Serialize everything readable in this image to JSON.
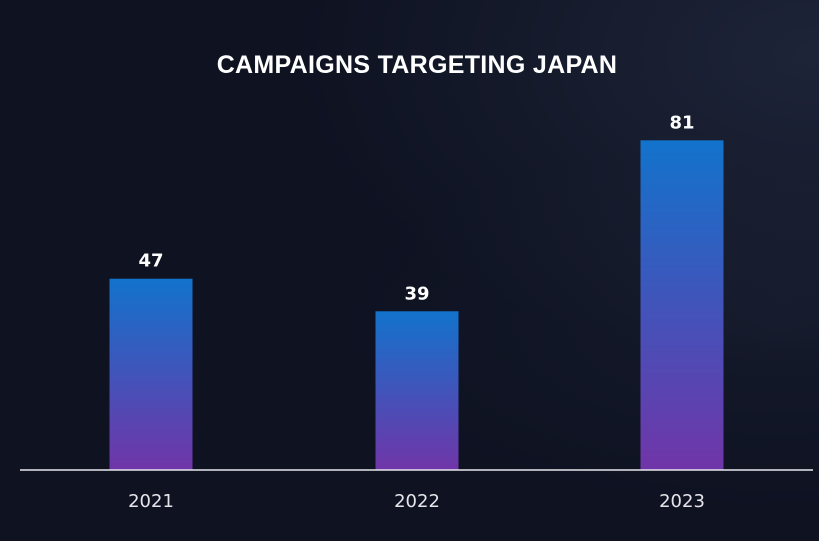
{
  "chart_data": {
    "type": "bar",
    "title": "CAMPAIGNS TARGETING JAPAN",
    "categories": [
      "2021",
      "2022",
      "2023"
    ],
    "values": [
      47,
      39,
      81
    ],
    "xlabel": "",
    "ylabel": "",
    "ylim": [
      0,
      100
    ],
    "grid": false,
    "legend": "none",
    "colors": {
      "bar_top": "#1273cc",
      "bar_bottom": "#7035a8",
      "background": "#0e1221",
      "axis": "#e8e8ee",
      "text": "#ffffff"
    }
  }
}
